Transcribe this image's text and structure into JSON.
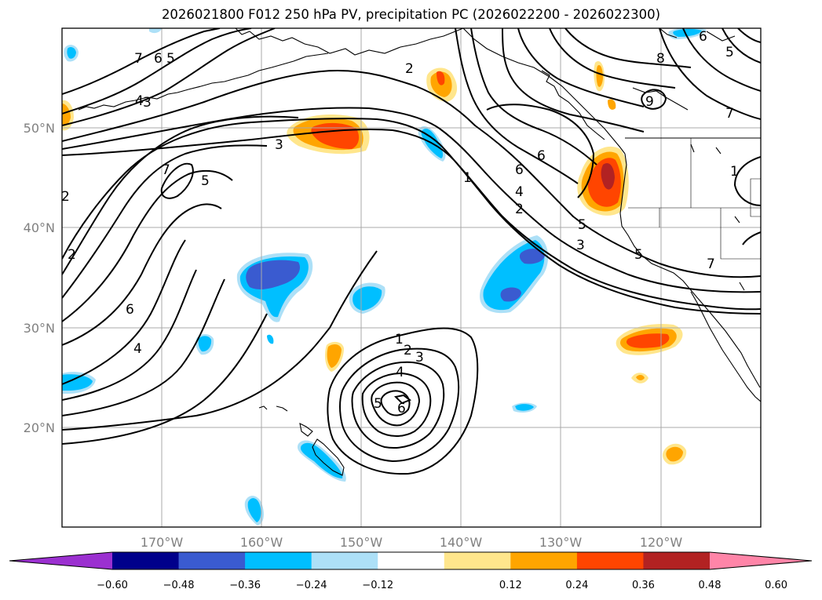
{
  "title": "2026021800 F012 250 hPa PV, precipitation PC (2026022200 - 2026022300)",
  "lon_labels": [
    "170°W",
    "160°W",
    "150°W",
    "140°W",
    "130°W",
    "120°W"
  ],
  "lat_labels": [
    "50°N",
    "40°N",
    "30°N",
    "20°N"
  ],
  "colorbar": {
    "tick_labels": [
      "−0.60",
      "−0.48",
      "−0.36",
      "−0.24",
      "−0.12",
      "0.12",
      "0.24",
      "0.36",
      "0.48",
      "0.60"
    ],
    "colors": [
      "#9b30d0",
      "#00008b",
      "#3a5bd0",
      "#00bfff",
      "#ade0f7",
      "#ffffff",
      "#ffe68c",
      "#ffa500",
      "#ff4500",
      "#b22222",
      "#ff85a8"
    ]
  },
  "contour_labels": [
    "7",
    "6",
    "5",
    "4",
    "3",
    "2",
    "1",
    "2",
    "6",
    "9",
    "8",
    "7",
    "5",
    "6",
    "3",
    "7",
    "5",
    "1",
    "2",
    "4",
    "6",
    "5",
    "3",
    "2",
    "6",
    "4",
    "5",
    "7",
    "1",
    "2",
    "3",
    "4",
    "5",
    "6"
  ],
  "colors": {
    "contour": "#000000",
    "coast": "#000000",
    "grid": "#a9a9a9",
    "tick_text": "#808080"
  }
}
